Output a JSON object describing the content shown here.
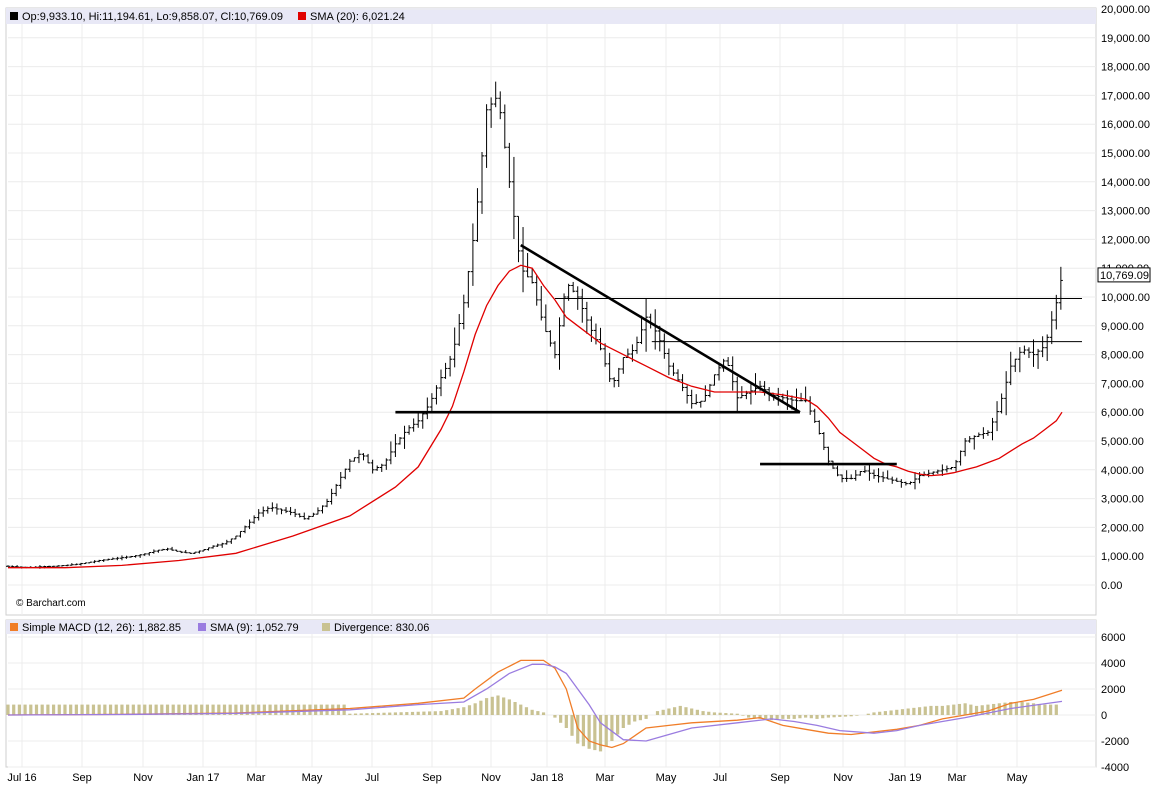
{
  "main_legend": {
    "ohlc": "Op:9,933.10, Hi:11,194.61, Lo:9,858.07, Cl:10,769.09",
    "sma": "SMA (20): 6,021.24",
    "ohlc_color": "#000000",
    "sma_color": "#e00000"
  },
  "macd_legend": {
    "macd": "Simple MACD (12, 26): 1,882.85",
    "signal": "SMA (9): 1,052.79",
    "divergence": "Divergence: 830.06",
    "macd_color": "#f07d28",
    "signal_color": "#9a7ce0",
    "divergence_color": "#c9c292"
  },
  "watermark": "© Barchart.com",
  "last_price_label": "10,769.09",
  "chart_data": [
    {
      "type": "ohlc",
      "x_labels": [
        "Jul 16",
        "Sep",
        "Nov",
        "Jan 17",
        "Mar",
        "May",
        "Jul",
        "Sep",
        "Nov",
        "Jan 18",
        "Mar",
        "May",
        "Jul",
        "Sep",
        "Nov",
        "Jan 19",
        "Mar",
        "May"
      ],
      "y_ticks": [
        "0.00",
        "1,000.00",
        "2,000.00",
        "3,000.00",
        "4,000.00",
        "5,000.00",
        "6,000.00",
        "7,000.00",
        "8,000.00",
        "9,000.00",
        "10,000.00",
        "11,000.00",
        "12,000.00",
        "13,000.00",
        "14,000.00",
        "15,000.00",
        "16,000.00",
        "17,000.00",
        "18,000.00",
        "19,000.00",
        "20,000.00"
      ],
      "ylim": [
        0,
        20000
      ],
      "grid": true,
      "price_path": [
        [
          0,
          650
        ],
        [
          10,
          620
        ],
        [
          20,
          610
        ],
        [
          30,
          640
        ],
        [
          40,
          650
        ],
        [
          50,
          680
        ],
        [
          60,
          720
        ],
        [
          70,
          780
        ],
        [
          80,
          850
        ],
        [
          90,
          900
        ],
        [
          100,
          950
        ],
        [
          110,
          1000
        ],
        [
          120,
          1080
        ],
        [
          130,
          1200
        ],
        [
          140,
          1250
        ],
        [
          150,
          1150
        ],
        [
          160,
          1100
        ],
        [
          170,
          1200
        ],
        [
          180,
          1350
        ],
        [
          190,
          1450
        ],
        [
          200,
          1700
        ],
        [
          210,
          2100
        ],
        [
          220,
          2500
        ],
        [
          230,
          2700
        ],
        [
          240,
          2600
        ],
        [
          250,
          2500
        ],
        [
          260,
          2300
        ],
        [
          270,
          2500
        ],
        [
          280,
          2900
        ],
        [
          290,
          3600
        ],
        [
          300,
          4300
        ],
        [
          310,
          4600
        ],
        [
          320,
          4000
        ],
        [
          330,
          4200
        ],
        [
          340,
          4900
        ],
        [
          350,
          5400
        ],
        [
          360,
          5700
        ],
        [
          370,
          6300
        ],
        [
          380,
          7200
        ],
        [
          390,
          8000
        ],
        [
          400,
          9800
        ],
        [
          410,
          12500
        ],
        [
          420,
          16500
        ],
        [
          430,
          17000
        ],
        [
          440,
          14000
        ],
        [
          450,
          11000
        ],
        [
          460,
          10500
        ],
        [
          470,
          9000
        ],
        [
          480,
          8000
        ],
        [
          490,
          10500
        ],
        [
          500,
          10000
        ],
        [
          510,
          9000
        ],
        [
          520,
          8200
        ],
        [
          530,
          6900
        ],
        [
          540,
          7900
        ],
        [
          550,
          8200
        ],
        [
          560,
          9300
        ],
        [
          570,
          8700
        ],
        [
          580,
          7600
        ],
        [
          590,
          7000
        ],
        [
          600,
          6300
        ],
        [
          610,
          6400
        ],
        [
          620,
          7300
        ],
        [
          630,
          7900
        ],
        [
          640,
          6500
        ],
        [
          650,
          6700
        ],
        [
          660,
          6900
        ],
        [
          670,
          6600
        ],
        [
          680,
          6500
        ],
        [
          690,
          6400
        ],
        [
          700,
          6400
        ],
        [
          710,
          5500
        ],
        [
          720,
          4300
        ],
        [
          730,
          3700
        ],
        [
          740,
          3700
        ],
        [
          750,
          4000
        ],
        [
          760,
          3800
        ],
        [
          770,
          3700
        ],
        [
          780,
          3600
        ],
        [
          790,
          3500
        ],
        [
          800,
          3800
        ],
        [
          810,
          3900
        ],
        [
          820,
          4000
        ],
        [
          830,
          4100
        ],
        [
          840,
          5000
        ],
        [
          850,
          5200
        ],
        [
          860,
          5300
        ],
        [
          870,
          6200
        ],
        [
          880,
          7600
        ],
        [
          890,
          8200
        ],
        [
          900,
          8000
        ],
        [
          910,
          8300
        ],
        [
          920,
          9800
        ],
        [
          925,
          10769
        ]
      ],
      "sma_path": [
        [
          0,
          600
        ],
        [
          50,
          600
        ],
        [
          100,
          680
        ],
        [
          150,
          850
        ],
        [
          200,
          1100
        ],
        [
          250,
          1700
        ],
        [
          300,
          2400
        ],
        [
          340,
          3400
        ],
        [
          360,
          4100
        ],
        [
          380,
          5400
        ],
        [
          390,
          6200
        ],
        [
          400,
          7400
        ],
        [
          410,
          8700
        ],
        [
          420,
          9700
        ],
        [
          430,
          10400
        ],
        [
          440,
          10900
        ],
        [
          450,
          11100
        ],
        [
          460,
          11000
        ],
        [
          470,
          10400
        ],
        [
          480,
          9900
        ],
        [
          490,
          9300
        ],
        [
          500,
          9000
        ],
        [
          520,
          8400
        ],
        [
          540,
          8000
        ],
        [
          560,
          7600
        ],
        [
          580,
          7200
        ],
        [
          600,
          6900
        ],
        [
          620,
          6700
        ],
        [
          640,
          6700
        ],
        [
          660,
          6700
        ],
        [
          680,
          6600
        ],
        [
          700,
          6450
        ],
        [
          710,
          6200
        ],
        [
          720,
          5800
        ],
        [
          730,
          5300
        ],
        [
          740,
          5000
        ],
        [
          750,
          4700
        ],
        [
          760,
          4400
        ],
        [
          770,
          4200
        ],
        [
          780,
          4100
        ],
        [
          790,
          3950
        ],
        [
          800,
          3850
        ],
        [
          810,
          3800
        ],
        [
          820,
          3830
        ],
        [
          830,
          3900
        ],
        [
          840,
          4000
        ],
        [
          850,
          4100
        ],
        [
          860,
          4250
        ],
        [
          870,
          4400
        ],
        [
          880,
          4650
        ],
        [
          890,
          4900
        ],
        [
          900,
          5100
        ],
        [
          910,
          5400
        ],
        [
          920,
          5700
        ],
        [
          925,
          6000
        ]
      ],
      "trendlines": [
        {
          "from": [
            450,
            11800
          ],
          "to": [
            695,
            6000
          ]
        },
        {
          "from": [
            340,
            6000
          ],
          "to": [
            695,
            6000
          ]
        },
        {
          "from": [
            660,
            4200
          ],
          "to": [
            780,
            4200
          ]
        }
      ],
      "resistance_lines": [
        {
          "from": [
            480,
            9950
          ],
          "to": [
            925,
            9950
          ]
        },
        {
          "from": [
            565,
            8450
          ],
          "to": [
            925,
            8450
          ]
        }
      ],
      "last_price": 10769.09
    },
    {
      "type": "macd",
      "y_ticks": [
        "-4000",
        "-2000",
        "0",
        "2000",
        "4000",
        "6000"
      ],
      "ylim": [
        -4000,
        6000
      ],
      "macd_path": [
        [
          0,
          0
        ],
        [
          100,
          50
        ],
        [
          200,
          150
        ],
        [
          300,
          500
        ],
        [
          360,
          900
        ],
        [
          400,
          1300
        ],
        [
          410,
          2000
        ],
        [
          430,
          3300
        ],
        [
          450,
          4200
        ],
        [
          470,
          4200
        ],
        [
          480,
          3600
        ],
        [
          490,
          2000
        ],
        [
          500,
          -1000
        ],
        [
          510,
          -2000
        ],
        [
          520,
          -2300
        ],
        [
          530,
          -2500
        ],
        [
          540,
          -2200
        ],
        [
          560,
          -1000
        ],
        [
          580,
          -800
        ],
        [
          600,
          -600
        ],
        [
          640,
          -400
        ],
        [
          660,
          -200
        ],
        [
          680,
          -800
        ],
        [
          700,
          -1100
        ],
        [
          720,
          -1400
        ],
        [
          740,
          -1500
        ],
        [
          760,
          -1300
        ],
        [
          780,
          -1100
        ],
        [
          800,
          -800
        ],
        [
          820,
          -300
        ],
        [
          860,
          300
        ],
        [
          880,
          900
        ],
        [
          900,
          1200
        ],
        [
          925,
          1900
        ]
      ],
      "signal_path": [
        [
          0,
          0
        ],
        [
          100,
          40
        ],
        [
          200,
          120
        ],
        [
          300,
          400
        ],
        [
          360,
          800
        ],
        [
          400,
          1000
        ],
        [
          420,
          2000
        ],
        [
          440,
          3200
        ],
        [
          460,
          3900
        ],
        [
          470,
          3900
        ],
        [
          480,
          3700
        ],
        [
          490,
          3200
        ],
        [
          500,
          2000
        ],
        [
          510,
          800
        ],
        [
          520,
          -600
        ],
        [
          540,
          -1900
        ],
        [
          560,
          -2000
        ],
        [
          580,
          -1500
        ],
        [
          600,
          -1000
        ],
        [
          640,
          -600
        ],
        [
          670,
          -300
        ],
        [
          690,
          -500
        ],
        [
          710,
          -800
        ],
        [
          730,
          -1200
        ],
        [
          760,
          -1400
        ],
        [
          780,
          -1200
        ],
        [
          800,
          -800
        ],
        [
          840,
          -200
        ],
        [
          880,
          500
        ],
        [
          925,
          1050
        ]
      ],
      "divergence_bars": [
        [
          300,
          100
        ],
        [
          320,
          150
        ],
        [
          340,
          200
        ],
        [
          360,
          250
        ],
        [
          380,
          300
        ],
        [
          400,
          600
        ],
        [
          410,
          900
        ],
        [
          420,
          1300
        ],
        [
          430,
          1500
        ],
        [
          440,
          1200
        ],
        [
          450,
          800
        ],
        [
          460,
          400
        ],
        [
          470,
          200
        ],
        [
          480,
          -200
        ],
        [
          490,
          -1000
        ],
        [
          500,
          -2200
        ],
        [
          510,
          -2600
        ],
        [
          520,
          -2800
        ],
        [
          530,
          -2000
        ],
        [
          540,
          -1000
        ],
        [
          550,
          -500
        ],
        [
          560,
          -300
        ],
        [
          570,
          300
        ],
        [
          580,
          500
        ],
        [
          590,
          700
        ],
        [
          600,
          500
        ],
        [
          610,
          300
        ],
        [
          620,
          200
        ],
        [
          630,
          150
        ],
        [
          640,
          100
        ],
        [
          650,
          -200
        ],
        [
          660,
          -300
        ],
        [
          670,
          -400
        ],
        [
          680,
          -300
        ],
        [
          690,
          -300
        ],
        [
          700,
          -200
        ],
        [
          710,
          -300
        ],
        [
          720,
          -200
        ],
        [
          730,
          -150
        ],
        [
          740,
          -100
        ],
        [
          750,
          0
        ],
        [
          760,
          200
        ],
        [
          770,
          300
        ],
        [
          780,
          400
        ],
        [
          790,
          500
        ],
        [
          800,
          600
        ],
        [
          810,
          700
        ],
        [
          820,
          700
        ],
        [
          830,
          800
        ],
        [
          840,
          900
        ],
        [
          850,
          700
        ],
        [
          860,
          800
        ],
        [
          870,
          900
        ],
        [
          880,
          1000
        ],
        [
          890,
          1000
        ],
        [
          900,
          900
        ],
        [
          910,
          800
        ],
        [
          920,
          800
        ]
      ]
    }
  ]
}
